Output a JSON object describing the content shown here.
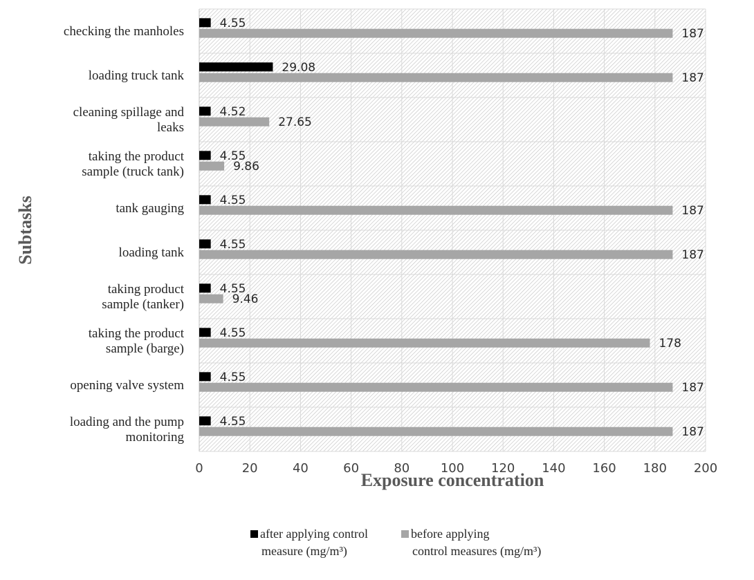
{
  "chart_data": {
    "type": "bar",
    "orientation": "horizontal",
    "categories": [
      "checking the manholes",
      "loading truck tank",
      "cleaning spillage and leaks",
      "taking the product sample (truck tank)",
      "tank gauging",
      "loading tank",
      "taking product sample (tanker)",
      "taking the product sample (barge)",
      "opening valve system",
      "loading and the pump monitoring"
    ],
    "category_lines": [
      [
        "checking the manholes"
      ],
      [
        "loading truck tank"
      ],
      [
        "cleaning spillage and",
        "leaks"
      ],
      [
        "taking the product",
        "sample (truck tank)"
      ],
      [
        "tank gauging"
      ],
      [
        "loading tank"
      ],
      [
        "taking product",
        "sample (tanker)"
      ],
      [
        "taking the product",
        "sample (barge)"
      ],
      [
        "opening valve system"
      ],
      [
        "loading and the pump",
        "monitoring"
      ]
    ],
    "series": [
      {
        "name": "after applying control measure (mg/m³)",
        "legend_lines": [
          "after applying control",
          "measure (mg/m³)"
        ],
        "color": "#000000",
        "values": [
          4.55,
          29.08,
          4.52,
          4.55,
          4.55,
          4.55,
          4.55,
          4.55,
          4.55,
          4.55
        ],
        "labels": [
          "4.55",
          "29.08",
          "4.52",
          "4.55",
          "4.55",
          "4.55",
          "4.55",
          "4.55",
          "4.55",
          "4.55"
        ]
      },
      {
        "name": "before applying control measures (mg/m³)",
        "legend_lines": [
          "before applying",
          "control measures (mg/m³)"
        ],
        "color": "#a6a6a6",
        "values": [
          187,
          187,
          27.65,
          9.86,
          187,
          187,
          9.46,
          178,
          187,
          187
        ],
        "labels": [
          "187",
          "187",
          "27.65",
          "9.86",
          "187",
          "187",
          "9.46",
          "178",
          "187",
          "187"
        ]
      }
    ],
    "xlabel": "Exposure concentration",
    "ylabel": "Subtasks",
    "xlim": [
      0,
      200
    ],
    "xticks": [
      "0",
      "20",
      "40",
      "60",
      "80",
      "100",
      "120",
      "140",
      "160",
      "180",
      "200"
    ],
    "grid": true,
    "legend_position": "bottom"
  }
}
